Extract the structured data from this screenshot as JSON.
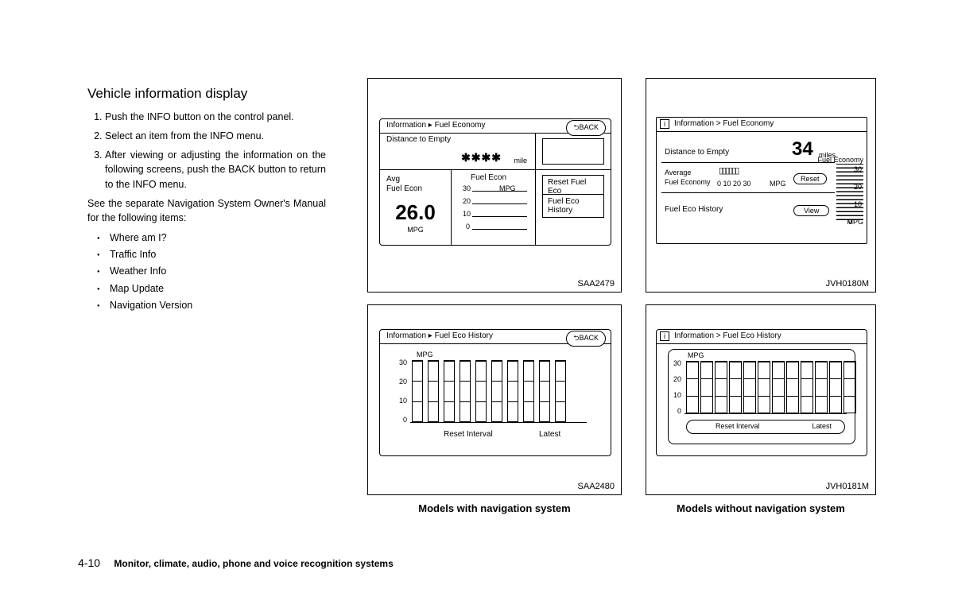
{
  "title": "Vehicle information display",
  "steps": [
    "Push the INFO button on the control panel.",
    "Select an item from the INFO menu.",
    "After viewing or adjusting the information on the following screens, push the BACK button to return to the INFO menu."
  ],
  "note": "See the separate Navigation System Owner's Manual for the following items:",
  "bullets": [
    "Where am I?",
    "Traffic Info",
    "Weather Info",
    "Map Update",
    "Navigation Version"
  ],
  "fig1": {
    "code": "SAA2479",
    "breadcrumb": "Information ▸ Fuel Economy",
    "back": "⮌BACK",
    "dte_label": "Distance to Empty",
    "dte_value": "✱✱✱✱",
    "dte_unit": "mile",
    "avg_label1": "Avg",
    "avg_label2": "Fuel Econ",
    "avg_value": "26.0",
    "avg_unit": "MPG",
    "chart_label": "Fuel Econ",
    "chart_ticks": [
      "30",
      "20",
      "10",
      "0"
    ],
    "chart_unit": "MPG",
    "btn1": "Reset Fuel Eco",
    "btn2": "Fuel Eco History"
  },
  "fig2": {
    "code": "JVH0180M",
    "breadcrumb": "Information > Fuel Economy",
    "dte_label": "Distance to Empty",
    "dte_value": "34",
    "dte_unit": "miles",
    "avg_label1": "Average",
    "avg_label2": "Fuel Economy",
    "scale": "0   10   20   30",
    "scale_unit": "MPG",
    "reset": "Reset",
    "hist_label": "Fuel Eco History",
    "view": "View",
    "gauge_label": "Fuel Economy",
    "gauge_ticks": [
      "30",
      "20",
      "10",
      "0"
    ],
    "gauge_unit": "MPG"
  },
  "fig3": {
    "code": "SAA2480",
    "breadcrumb": "Information ▸ Fuel Eco History",
    "back": "⮌BACK",
    "chart_unit": "MPG",
    "y_ticks": [
      "30",
      "20",
      "10",
      "0"
    ],
    "x_left": "Reset Interval",
    "x_right": "Latest",
    "bar_count": 10
  },
  "fig4": {
    "code": "JVH0181M",
    "breadcrumb": "Information > Fuel Eco History",
    "chart_unit": "MPG",
    "y_ticks": [
      "30",
      "20",
      "10",
      "0"
    ],
    "x_left": "Reset Interval",
    "x_right": "Latest",
    "bar_count": 12
  },
  "caption_left": "Models with navigation system",
  "caption_right": "Models without navigation system",
  "footer_page": "4-10",
  "footer_text": "Monitor, climate, audio, phone and voice recognition systems"
}
